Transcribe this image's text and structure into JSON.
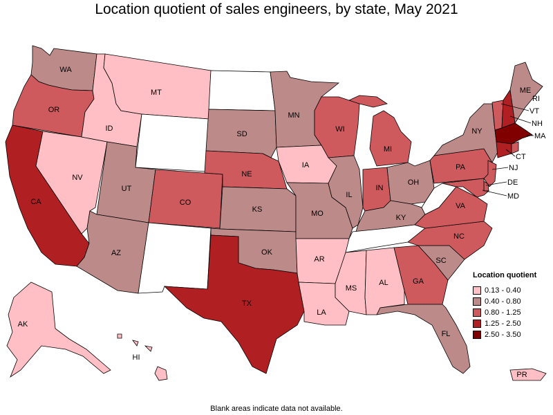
{
  "title": "Location quotient of sales engineers, by state, May 2021",
  "footnote": "Blank areas indicate data not available.",
  "legend": {
    "title": "Location quotient",
    "items": [
      {
        "label": "0.13 - 0.40",
        "color": "#ffbfc4"
      },
      {
        "label": "0.40 - 0.80",
        "color": "#bd8a8a"
      },
      {
        "label": "0.80 - 1.25",
        "color": "#cf5a5e"
      },
      {
        "label": "1.25 - 2.50",
        "color": "#b01f22"
      },
      {
        "label": "2.50 - 3.50",
        "color": "#800000"
      }
    ]
  },
  "states": {
    "WA": {
      "label": "WA",
      "class": "0.40 - 0.80"
    },
    "OR": {
      "label": "OR",
      "class": "0.80 - 1.25"
    },
    "CA": {
      "label": "CA",
      "class": "1.25 - 2.50"
    },
    "NV": {
      "label": "NV",
      "class": "0.13 - 0.40"
    },
    "ID": {
      "label": "ID",
      "class": "0.13 - 0.40"
    },
    "MT": {
      "label": "MT",
      "class": "0.13 - 0.40"
    },
    "WY": {
      "label": "",
      "class": "none"
    },
    "UT": {
      "label": "UT",
      "class": "0.40 - 0.80"
    },
    "AZ": {
      "label": "AZ",
      "class": "0.40 - 0.80"
    },
    "CO": {
      "label": "CO",
      "class": "0.80 - 1.25"
    },
    "NM": {
      "label": "",
      "class": "none"
    },
    "ND": {
      "label": "",
      "class": "none"
    },
    "SD": {
      "label": "SD",
      "class": "0.40 - 0.80"
    },
    "NE": {
      "label": "NE",
      "class": "0.80 - 1.25"
    },
    "KS": {
      "label": "KS",
      "class": "0.40 - 0.80"
    },
    "OK": {
      "label": "OK",
      "class": "0.40 - 0.80"
    },
    "TX": {
      "label": "TX",
      "class": "1.25 - 2.50"
    },
    "MN": {
      "label": "MN",
      "class": "0.40 - 0.80"
    },
    "IA": {
      "label": "IA",
      "class": "0.13 - 0.40"
    },
    "MO": {
      "label": "MO",
      "class": "0.40 - 0.80"
    },
    "AR": {
      "label": "AR",
      "class": "0.13 - 0.40"
    },
    "LA": {
      "label": "LA",
      "class": "0.13 - 0.40"
    },
    "WI": {
      "label": "WI",
      "class": "0.80 - 1.25"
    },
    "IL": {
      "label": "IL",
      "class": "0.40 - 0.80"
    },
    "MI": {
      "label": "MI",
      "class": "0.80 - 1.25"
    },
    "IN": {
      "label": "IN",
      "class": "0.80 - 1.25"
    },
    "OH": {
      "label": "OH",
      "class": "0.40 - 0.80"
    },
    "KY": {
      "label": "KY",
      "class": "0.40 - 0.80"
    },
    "TN": {
      "label": "",
      "class": "none"
    },
    "MS": {
      "label": "MS",
      "class": "0.13 - 0.40"
    },
    "AL": {
      "label": "AL",
      "class": "0.13 - 0.40"
    },
    "GA": {
      "label": "GA",
      "class": "0.80 - 1.25"
    },
    "FL": {
      "label": "FL",
      "class": "0.40 - 0.80"
    },
    "SC": {
      "label": "SC",
      "class": "0.40 - 0.80"
    },
    "NC": {
      "label": "NC",
      "class": "0.80 - 1.25"
    },
    "VA": {
      "label": "VA",
      "class": "0.80 - 1.25"
    },
    "WV": {
      "label": "",
      "class": "none"
    },
    "PA": {
      "label": "PA",
      "class": "0.80 - 1.25"
    },
    "NY": {
      "label": "NY",
      "class": "0.40 - 0.80"
    },
    "ME": {
      "label": "ME",
      "class": "0.40 - 0.80"
    },
    "VT": {
      "label": "VT",
      "class": "0.80 - 1.25"
    },
    "NH": {
      "label": "NH",
      "class": "1.25 - 2.50"
    },
    "MA": {
      "label": "MA",
      "class": "2.50 - 3.50"
    },
    "RI": {
      "label": "RI",
      "class": "0.80 - 1.25"
    },
    "CT": {
      "label": "CT",
      "class": "1.25 - 2.50"
    },
    "NJ": {
      "label": "NJ",
      "class": "0.80 - 1.25"
    },
    "DE": {
      "label": "DE",
      "class": "0.80 - 1.25"
    },
    "MD": {
      "label": "MD",
      "class": "0.80 - 1.25"
    },
    "AK": {
      "label": "AK",
      "class": "0.13 - 0.40"
    },
    "HI": {
      "label": "HI",
      "class": "0.13 - 0.40"
    },
    "PR": {
      "label": "PR",
      "class": "0.13 - 0.40"
    }
  }
}
